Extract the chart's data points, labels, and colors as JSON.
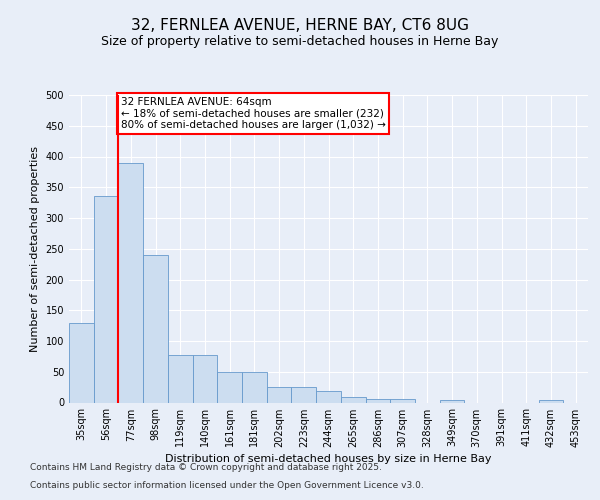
{
  "title_line1": "32, FERNLEA AVENUE, HERNE BAY, CT6 8UG",
  "title_line2": "Size of property relative to semi-detached houses in Herne Bay",
  "xlabel": "Distribution of semi-detached houses by size in Herne Bay",
  "ylabel": "Number of semi-detached properties",
  "categories": [
    "35sqm",
    "56sqm",
    "77sqm",
    "98sqm",
    "119sqm",
    "140sqm",
    "161sqm",
    "181sqm",
    "202sqm",
    "223sqm",
    "244sqm",
    "265sqm",
    "286sqm",
    "307sqm",
    "328sqm",
    "349sqm",
    "370sqm",
    "391sqm",
    "411sqm",
    "432sqm",
    "453sqm"
  ],
  "values": [
    130,
    335,
    390,
    240,
    78,
    78,
    50,
    50,
    26,
    26,
    18,
    9,
    6,
    6,
    0,
    4,
    0,
    0,
    0,
    4,
    0
  ],
  "bar_color": "#ccddf0",
  "bar_edge_color": "#6699cc",
  "vline_x_idx": 1.5,
  "vline_color": "red",
  "annotation_text": "32 FERNLEA AVENUE: 64sqm\n← 18% of semi-detached houses are smaller (232)\n80% of semi-detached houses are larger (1,032) →",
  "annotation_box_color": "white",
  "annotation_box_edge": "red",
  "ylim": [
    0,
    500
  ],
  "yticks": [
    0,
    50,
    100,
    150,
    200,
    250,
    300,
    350,
    400,
    450,
    500
  ],
  "footer_line1": "Contains HM Land Registry data © Crown copyright and database right 2025.",
  "footer_line2": "Contains public sector information licensed under the Open Government Licence v3.0.",
  "bg_color": "#e8eef8",
  "plot_bg_color": "#e8eef8",
  "grid_color": "#ffffff",
  "title_fontsize": 11,
  "subtitle_fontsize": 9,
  "label_fontsize": 8,
  "tick_fontsize": 7,
  "footer_fontsize": 6.5,
  "annot_fontsize": 7.5
}
